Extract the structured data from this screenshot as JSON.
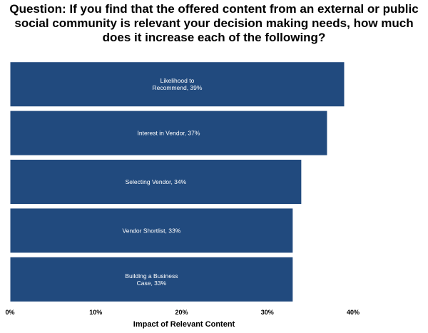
{
  "chart_data": {
    "type": "bar",
    "orientation": "horizontal",
    "title": "Question: If you find that the offered content from an external or public social community is relevant your decision making needs, how much does it increase each of the following?",
    "xlabel": "Impact of Relevant Content",
    "ylabel": "",
    "xlim": [
      0,
      40
    ],
    "xticks": [
      "0%",
      "10%",
      "20%",
      "30%",
      "40%"
    ],
    "grid": false,
    "bar_color": "#214a7e",
    "bar_border": "#ffffff",
    "bars": [
      {
        "label": [
          "Likelihood to",
          "Recommend, 39%"
        ],
        "value": 39
      },
      {
        "label": [
          "Interest in Vendor, 37%"
        ],
        "value": 37
      },
      {
        "label": [
          "Selecting Vendor, 34%"
        ],
        "value": 34
      },
      {
        "label": [
          "Vendor Shortlist, 33%"
        ],
        "value": 33
      },
      {
        "label": [
          "Building a Business",
          "Case, 33%"
        ],
        "value": 33
      }
    ]
  }
}
